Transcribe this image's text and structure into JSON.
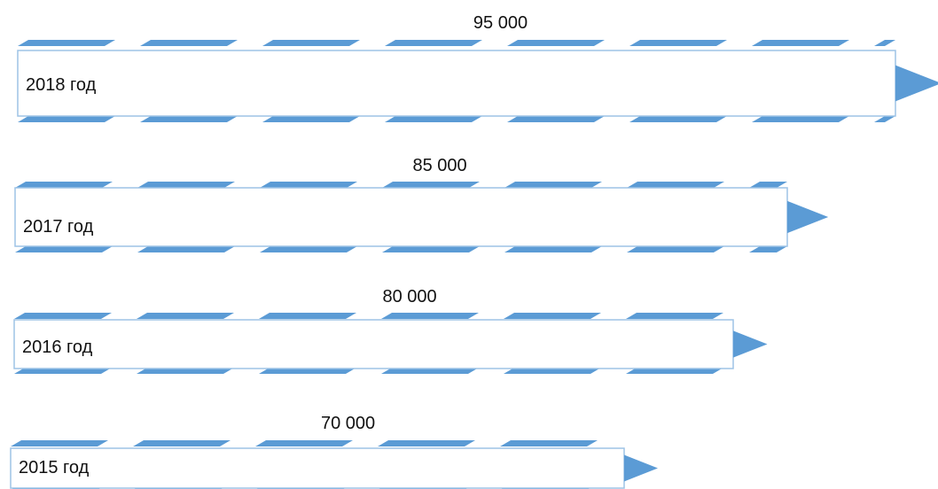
{
  "chart_data": {
    "type": "bar",
    "orientation": "horizontal",
    "categories": [
      "2018 год",
      "2017 год",
      "2016 год",
      "2015 год"
    ],
    "values": [
      95000,
      85000,
      80000,
      70000
    ],
    "value_labels": [
      "95 000",
      "85 000",
      "80 000",
      "70 000"
    ],
    "title": "",
    "xlabel": "",
    "ylabel": "",
    "grid": false,
    "legend": "none"
  },
  "colors": {
    "accent": "#5B9BD5",
    "box_border": "#9DC3E6",
    "box_fill": "#FFFFFF",
    "text": "#111111"
  }
}
